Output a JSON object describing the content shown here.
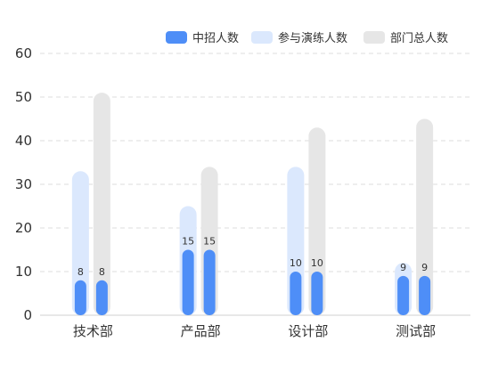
{
  "chart_data": {
    "type": "bar",
    "categories": [
      "技术部",
      "产品部",
      "设计部",
      "测试部"
    ],
    "series": [
      {
        "name": "中招人数",
        "values": [
          8,
          15,
          10,
          9
        ],
        "color": "#4e8ef7",
        "show_labels": true
      },
      {
        "name": "参与演练人数",
        "values": [
          33,
          25,
          34,
          12
        ],
        "color": "#dbe8fd",
        "show_labels": false
      },
      {
        "name": "部门总人数",
        "values": [
          51,
          34,
          43,
          45
        ],
        "color": "#e6e6e6",
        "show_labels": false
      }
    ],
    "ylim": [
      0,
      60
    ],
    "yticks": [
      0,
      10,
      20,
      30,
      40,
      50,
      60
    ],
    "grid": true,
    "legend_position": "top-right"
  }
}
